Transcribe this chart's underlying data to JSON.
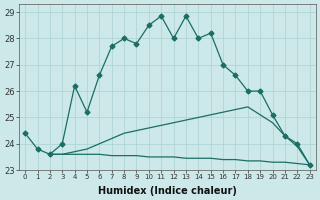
{
  "title": "",
  "xlabel": "Humidex (Indice chaleur)",
  "ylabel": "",
  "bg_color": "#cce8e8",
  "grid_color": "#b0d4d4",
  "line_color": "#1a6e64",
  "xlim": [
    -0.5,
    23.5
  ],
  "ylim": [
    23,
    29.3
  ],
  "xticks": [
    0,
    1,
    2,
    3,
    4,
    5,
    6,
    7,
    8,
    9,
    10,
    11,
    12,
    13,
    14,
    15,
    16,
    17,
    18,
    19,
    20,
    21,
    22,
    23
  ],
  "yticks": [
    23,
    24,
    25,
    26,
    27,
    28,
    29
  ],
  "series": [
    {
      "x": [
        0,
        1,
        2,
        3,
        4,
        5,
        6,
        7,
        8,
        9,
        10,
        11,
        12,
        13,
        14,
        15,
        16,
        17,
        18,
        19,
        20,
        21,
        22,
        23
      ],
      "y": [
        24.4,
        23.8,
        23.6,
        24.0,
        26.2,
        25.2,
        26.6,
        27.7,
        28.0,
        27.8,
        28.5,
        28.85,
        28.0,
        28.85,
        28.0,
        28.2,
        27.0,
        26.6,
        26.0,
        26.0,
        25.1,
        24.3,
        24.0,
        23.2
      ],
      "marker": "D",
      "markersize": 2.5,
      "linestyle": "-",
      "linewidth": 0.9
    },
    {
      "x": [
        2,
        3,
        4,
        5,
        6,
        7,
        8,
        9,
        10,
        11,
        12,
        13,
        14,
        15,
        16,
        17,
        18,
        19,
        20,
        21,
        22,
        23
      ],
      "y": [
        23.6,
        23.6,
        23.7,
        23.8,
        24.0,
        24.2,
        24.4,
        24.5,
        24.6,
        24.7,
        24.8,
        24.9,
        25.0,
        25.1,
        25.2,
        25.3,
        25.4,
        25.1,
        24.8,
        24.3,
        23.9,
        23.2
      ],
      "marker": null,
      "markersize": 0,
      "linestyle": "-",
      "linewidth": 0.9
    },
    {
      "x": [
        2,
        3,
        4,
        5,
        6,
        7,
        8,
        9,
        10,
        11,
        12,
        13,
        14,
        15,
        16,
        17,
        18,
        19,
        20,
        21,
        22,
        23
      ],
      "y": [
        23.6,
        23.6,
        23.6,
        23.6,
        23.6,
        23.55,
        23.55,
        23.55,
        23.5,
        23.5,
        23.5,
        23.45,
        23.45,
        23.45,
        23.4,
        23.4,
        23.35,
        23.35,
        23.3,
        23.3,
        23.25,
        23.2
      ],
      "marker": null,
      "markersize": 0,
      "linestyle": "-",
      "linewidth": 0.9
    }
  ]
}
